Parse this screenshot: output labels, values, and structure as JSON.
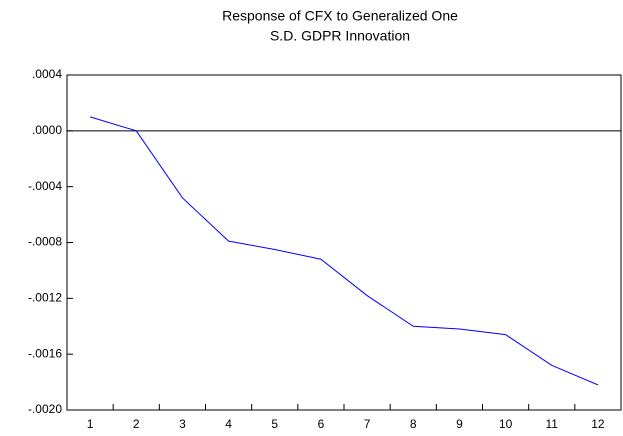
{
  "chart_data": {
    "type": "line",
    "title": [
      "Response of CFX to Generalized One",
      "S.D. GDPR Innovation"
    ],
    "categories": [
      "1",
      "2",
      "3",
      "4",
      "5",
      "6",
      "7",
      "8",
      "9",
      "10",
      "11",
      "12"
    ],
    "series": [
      {
        "color": "#0000ff",
        "values": [
          0.0001,
          0.0,
          -0.00048,
          -0.00079,
          -0.00085,
          -0.00092,
          -0.00118,
          -0.0014,
          -0.00142,
          -0.00146,
          -0.00168,
          -0.00182
        ]
      }
    ],
    "ylim": [
      -0.002,
      0.0004
    ],
    "yticks": [
      {
        "value": 0.0004,
        "label": ".0004"
      },
      {
        "value": 0,
        "label": ".0000"
      },
      {
        "value": -0.0004,
        "label": "-.0004"
      },
      {
        "value": -0.0008,
        "label": "-.0008"
      },
      {
        "value": -0.0012,
        "label": "-.0012"
      },
      {
        "value": -0.0016,
        "label": "-.0016"
      },
      {
        "value": -0.002,
        "label": "-.0020"
      }
    ],
    "zero_line": true
  }
}
